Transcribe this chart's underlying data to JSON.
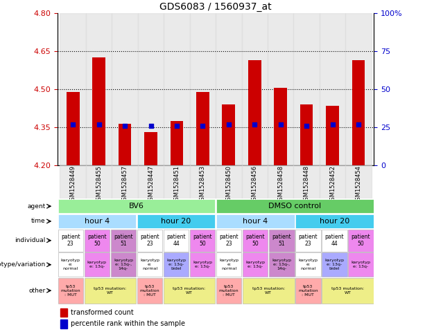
{
  "title": "GDS6083 / 1560937_at",
  "samples": [
    "GSM1528449",
    "GSM1528455",
    "GSM1528457",
    "GSM1528447",
    "GSM1528451",
    "GSM1528453",
    "GSM1528450",
    "GSM1528456",
    "GSM1528458",
    "GSM1528448",
    "GSM1528452",
    "GSM1528454"
  ],
  "bar_values": [
    4.49,
    4.625,
    4.365,
    4.33,
    4.375,
    4.49,
    4.44,
    4.615,
    4.505,
    4.44,
    4.435,
    4.615
  ],
  "bar_base": 4.2,
  "dot_values": [
    4.36,
    4.36,
    4.355,
    4.355,
    4.355,
    4.355,
    4.36,
    4.36,
    4.36,
    4.355,
    4.36,
    4.36
  ],
  "ylim_left": [
    4.2,
    4.8
  ],
  "ylim_right": [
    0,
    100
  ],
  "yticks_left": [
    4.2,
    4.35,
    4.5,
    4.65,
    4.8
  ],
  "yticks_right": [
    0,
    25,
    50,
    75,
    100
  ],
  "hlines": [
    4.35,
    4.5,
    4.65
  ],
  "bar_color": "#cc0000",
  "dot_color": "#0000cc",
  "bar_width": 0.5,
  "tick_color_left": "#cc0000",
  "tick_color_right": "#0000cc",
  "agent_spans": [
    [
      0,
      6,
      "BV6",
      "#99ee99"
    ],
    [
      6,
      12,
      "DMSO control",
      "#66cc66"
    ]
  ],
  "time_spans": [
    [
      0,
      3,
      "hour 4",
      "#aaddff"
    ],
    [
      3,
      6,
      "hour 20",
      "#44ccee"
    ],
    [
      6,
      9,
      "hour 4",
      "#aaddff"
    ],
    [
      9,
      12,
      "hour 20",
      "#44ccee"
    ]
  ],
  "individual_values": [
    "patient\n23",
    "patient\n50",
    "patient\n51",
    "patient\n23",
    "patient\n44",
    "patient\n50",
    "patient\n23",
    "patient\n50",
    "patient\n51",
    "patient\n23",
    "patient\n44",
    "patient\n50"
  ],
  "individual_colors": [
    "#ffffff",
    "#ee88ee",
    "#cc88cc",
    "#ffffff",
    "#ffffff",
    "#ee88ee",
    "#ffffff",
    "#ee88ee",
    "#cc88cc",
    "#ffffff",
    "#ffffff",
    "#ee88ee"
  ],
  "genotype_values": [
    "karyotyp\ne:\nnormal",
    "karyotyp\ne: 13q-",
    "karyotyp\ne: 13q-,\n14q-",
    "karyotyp\ne:\nnormal",
    "karyotyp\ne: 13q-\nbidel",
    "karyotyp\ne: 13q-",
    "karyotyp\ne:\nnormal",
    "karyotyp\ne: 13q-",
    "karyotyp\ne: 13q-,\n14q-",
    "karyotyp\ne:\nnormal",
    "karyotyp\ne: 13q-\nbidel",
    "karyotyp\ne: 13q-"
  ],
  "genotype_colors": [
    "#ffffff",
    "#ee88ee",
    "#cc88cc",
    "#ffffff",
    "#aaaaff",
    "#ee88ee",
    "#ffffff",
    "#ee88ee",
    "#cc88cc",
    "#ffffff",
    "#aaaaff",
    "#ee88ee"
  ],
  "other_spans": [
    [
      0,
      1,
      "tp53\nmutation\n: MUT",
      "#ffaaaa"
    ],
    [
      1,
      3,
      "tp53 mutation:\nWT",
      "#eeee88"
    ],
    [
      3,
      4,
      "tp53\nmutation\n: MUT",
      "#ffaaaa"
    ],
    [
      4,
      6,
      "tp53 mutation:\nWT",
      "#eeee88"
    ],
    [
      6,
      7,
      "tp53\nmutation\n: MUT",
      "#ffaaaa"
    ],
    [
      7,
      9,
      "tp53 mutation:\nWT",
      "#eeee88"
    ],
    [
      9,
      10,
      "tp53\nmutation\n: MUT",
      "#ffaaaa"
    ],
    [
      10,
      12,
      "tp53 mutation:\nWT",
      "#eeee88"
    ]
  ]
}
